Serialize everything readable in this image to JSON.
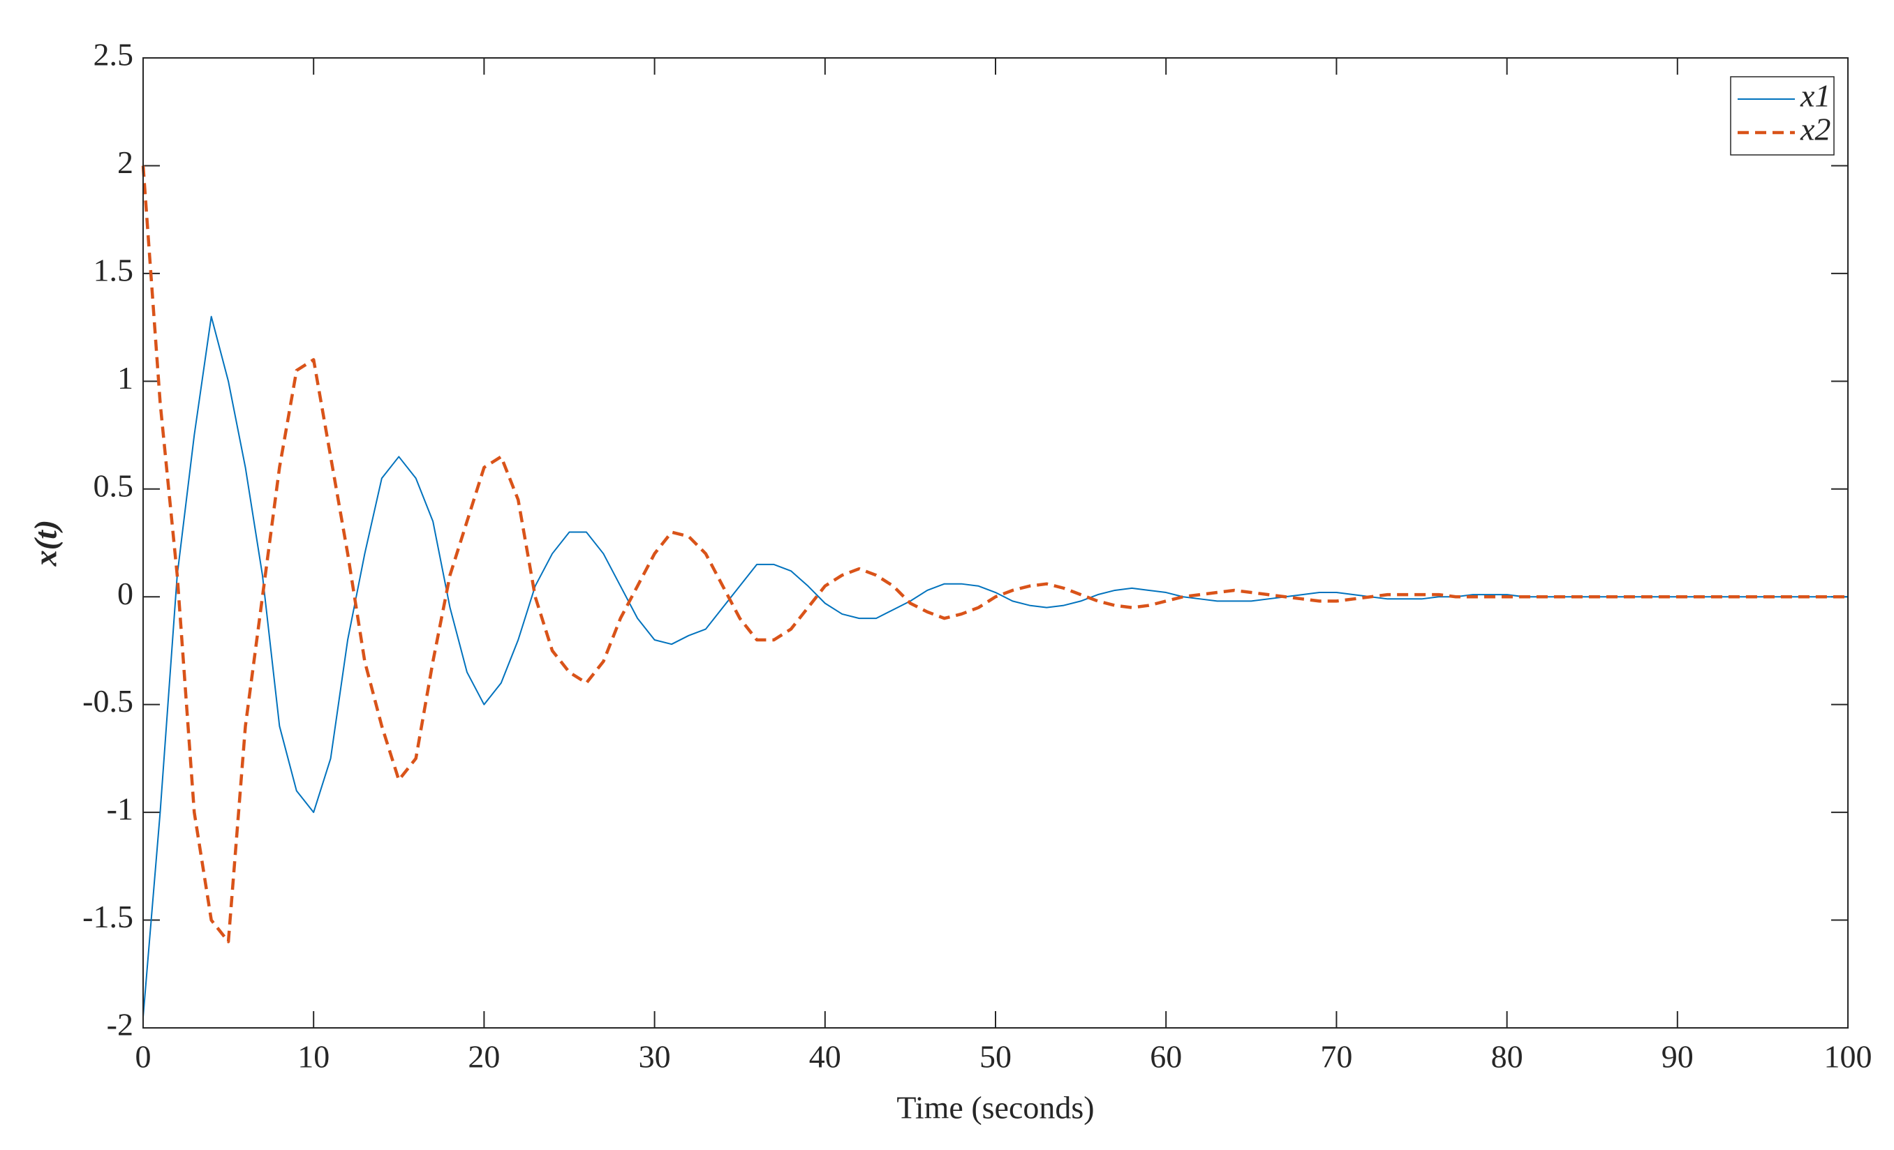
{
  "chart_data": {
    "type": "line",
    "xlabel": "Time (seconds)",
    "ylabel": "x(t)",
    "x": [
      0,
      1,
      2,
      3,
      4,
      5,
      6,
      7,
      8,
      9,
      10,
      11,
      12,
      13,
      14,
      15,
      16,
      17,
      18,
      19,
      20,
      21,
      22,
      23,
      24,
      25,
      26,
      27,
      28,
      29,
      30,
      31,
      32,
      33,
      34,
      35,
      36,
      37,
      38,
      39,
      40,
      41,
      42,
      43,
      44,
      45,
      46,
      47,
      48,
      49,
      50,
      51,
      52,
      53,
      54,
      55,
      56,
      57,
      58,
      59,
      60,
      61,
      62,
      63,
      64,
      65,
      66,
      67,
      68,
      69,
      70,
      71,
      72,
      73,
      74,
      75,
      76,
      77,
      78,
      79,
      80,
      81,
      82,
      83,
      84,
      85,
      86,
      87,
      88,
      89,
      90,
      91,
      92,
      93,
      94,
      95,
      96,
      97,
      98,
      99,
      100
    ],
    "series": [
      {
        "name": "x1",
        "color": "#0072bd",
        "dash": false,
        "values": [
          -1.95,
          -1.0,
          0.1,
          0.75,
          1.3,
          1.0,
          0.6,
          0.1,
          -0.6,
          -0.9,
          -1.0,
          -0.75,
          -0.2,
          0.2,
          0.55,
          0.65,
          0.55,
          0.35,
          -0.05,
          -0.35,
          -0.5,
          -0.4,
          -0.2,
          0.05,
          0.2,
          0.3,
          0.3,
          0.2,
          0.05,
          -0.1,
          -0.2,
          -0.22,
          -0.18,
          -0.15,
          -0.05,
          0.05,
          0.15,
          0.15,
          0.12,
          0.05,
          -0.03,
          -0.08,
          -0.1,
          -0.1,
          -0.06,
          -0.02,
          0.03,
          0.06,
          0.06,
          0.05,
          0.02,
          -0.02,
          -0.04,
          -0.05,
          -0.04,
          -0.02,
          0.01,
          0.03,
          0.04,
          0.03,
          0.02,
          0,
          -0.01,
          -0.02,
          -0.02,
          -0.02,
          -0.01,
          0,
          0.01,
          0.02,
          0.02,
          0.01,
          0,
          -0.01,
          -0.01,
          -0.01,
          0,
          0,
          0.01,
          0.01,
          0.01,
          0,
          0,
          0,
          0,
          0,
          0,
          0,
          0,
          0,
          0,
          0,
          0,
          0,
          0,
          0,
          0,
          0,
          0,
          0,
          0
        ]
      },
      {
        "name": "x2",
        "color": "#d95319",
        "dash": true,
        "values": [
          2.0,
          0.9,
          0.1,
          -1.0,
          -1.5,
          -1.6,
          -0.6,
          0.0,
          0.6,
          1.05,
          1.1,
          0.65,
          0.2,
          -0.3,
          -0.6,
          -0.85,
          -0.75,
          -0.3,
          0.1,
          0.35,
          0.6,
          0.65,
          0.45,
          0.0,
          -0.25,
          -0.35,
          -0.4,
          -0.3,
          -0.1,
          0.05,
          0.2,
          0.3,
          0.28,
          0.2,
          0.05,
          -0.1,
          -0.2,
          -0.2,
          -0.15,
          -0.05,
          0.05,
          0.1,
          0.13,
          0.1,
          0.05,
          -0.03,
          -0.07,
          -0.1,
          -0.08,
          -0.05,
          0,
          0.03,
          0.05,
          0.06,
          0.04,
          0.01,
          -0.02,
          -0.04,
          -0.05,
          -0.04,
          -0.02,
          0,
          0.01,
          0.02,
          0.03,
          0.02,
          0.01,
          0,
          -0.01,
          -0.02,
          -0.02,
          -0.01,
          0,
          0.01,
          0.01,
          0.01,
          0.01,
          0,
          0,
          0,
          0,
          0,
          0,
          0,
          0,
          0,
          0,
          0,
          0,
          0,
          0,
          0,
          0,
          0,
          0,
          0,
          0,
          0,
          0,
          0,
          0
        ]
      }
    ],
    "xlim": [
      0,
      100
    ],
    "xticks": [
      0,
      10,
      20,
      30,
      40,
      50,
      60,
      70,
      80,
      90,
      100
    ],
    "ylim": [
      -2,
      2.5
    ],
    "yticks": [
      -2,
      -1.5,
      -1,
      -0.5,
      0,
      0.5,
      1,
      1.5,
      2,
      2.5
    ],
    "grid": false,
    "box": true,
    "legend": "northeast"
  }
}
